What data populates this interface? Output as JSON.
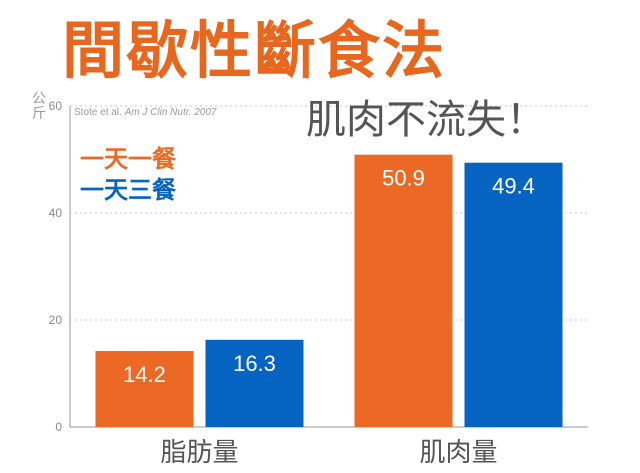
{
  "title": "間歇性斷食法",
  "subtitle": "肌肉不流失！",
  "source": {
    "authors": "Stote et al.",
    "journal": "Am J Clin Nutr. 2007"
  },
  "colors": {
    "orange": "#ec6925",
    "blue": "#0563c1",
    "axis": "#9a9a9a",
    "grid": "#c9c9c9",
    "label": "#555555"
  },
  "chart_data": {
    "type": "bar",
    "ylabel": "公斤",
    "ylim": [
      0,
      60
    ],
    "yticks": [
      0,
      20,
      40,
      60
    ],
    "grid": true,
    "legend_placement": "top-left",
    "categories": [
      "脂肪量",
      "肌肉量"
    ],
    "series": [
      {
        "name": "一天一餐",
        "color": "#ec6925",
        "values": [
          14.2,
          50.9
        ],
        "labels": [
          "14.2",
          "50.9"
        ]
      },
      {
        "name": "一天三餐",
        "color": "#0563c1",
        "values": [
          16.3,
          49.4
        ],
        "labels": [
          "16.3",
          "49.4"
        ]
      }
    ]
  }
}
